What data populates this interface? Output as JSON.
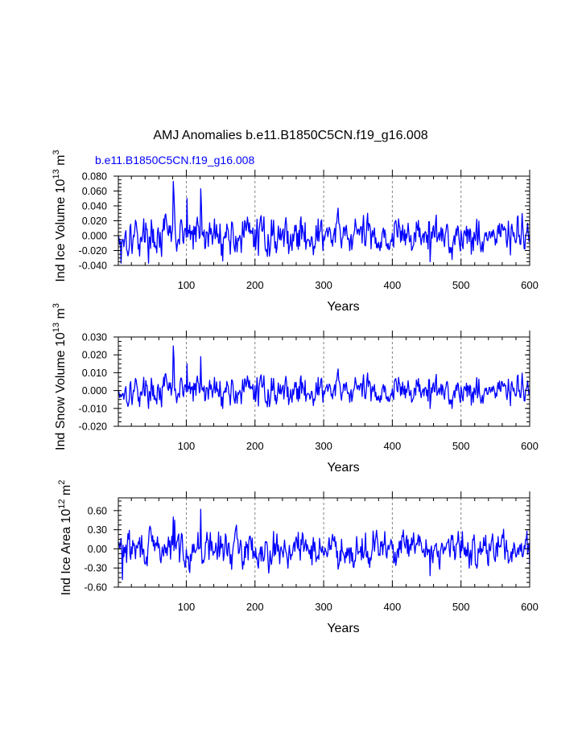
{
  "title": "AMJ Anomalies b.e11.B1850C5CN.f19_g16.008",
  "subtitle": "b.e11.B1850C5CN.f19_g16.008",
  "line_color": "#0000ff",
  "chart_data": [
    {
      "type": "line",
      "name": "ind-ice-volume",
      "ylabel_main": "Ind Ice Volume 10",
      "ylabel_exp": "13",
      "ylabel_unit": " m",
      "ylabel_unit_exp": "3",
      "xlabel": "Years",
      "xlim": [
        1,
        600
      ],
      "ylim": [
        -0.04,
        0.08
      ],
      "xticks": [
        100,
        200,
        300,
        400,
        500,
        600
      ],
      "yticks": [
        -0.04,
        -0.02,
        0.0,
        0.02,
        0.04,
        0.06,
        0.08
      ],
      "yticklabels": [
        "-0.040",
        "-0.020",
        "0.000",
        "0.020",
        "0.040",
        "0.060",
        "0.080"
      ],
      "yminor_step": 0.005,
      "grid_x": true,
      "seed": 17,
      "noise": 0.0165,
      "clip": [
        -0.037,
        0.073
      ],
      "features": [
        {
          "year": 81,
          "value": 0.073
        },
        {
          "year": 82,
          "value": 0.055
        },
        {
          "year": 83,
          "value": 0.03
        },
        {
          "year": 101,
          "value": 0.05
        },
        {
          "year": 121,
          "value": 0.063
        },
        {
          "year": 122,
          "value": 0.04
        },
        {
          "year": 5,
          "value": -0.037
        },
        {
          "year": 455,
          "value": -0.035
        }
      ]
    },
    {
      "type": "line",
      "name": "ind-snow-volume",
      "ylabel_main": "Ind Snow Volume 10",
      "ylabel_exp": "13",
      "ylabel_unit": " m",
      "ylabel_unit_exp": "3",
      "xlabel": "Years",
      "xlim": [
        1,
        600
      ],
      "ylim": [
        -0.02,
        0.03
      ],
      "xticks": [
        100,
        200,
        300,
        400,
        500,
        600
      ],
      "yticks": [
        -0.02,
        -0.01,
        0.0,
        0.01,
        0.02,
        0.03
      ],
      "yticklabels": [
        "-0.020",
        "-0.010",
        "0.000",
        "0.010",
        "0.020",
        "0.030"
      ],
      "yminor_step": 0.0025,
      "grid_x": true,
      "seed": 17,
      "noise": 0.0054,
      "clip": [
        -0.01,
        0.025
      ],
      "features": [
        {
          "year": 81,
          "value": 0.025
        },
        {
          "year": 82,
          "value": 0.018
        },
        {
          "year": 121,
          "value": 0.019
        },
        {
          "year": 101,
          "value": 0.015
        },
        {
          "year": 455,
          "value": -0.01
        }
      ]
    },
    {
      "type": "line",
      "name": "ind-ice-area",
      "ylabel_main": "Ind Ice Area 10",
      "ylabel_exp": "12",
      "ylabel_unit": " m",
      "ylabel_unit_exp": "2",
      "xlabel": "Years",
      "xlim": [
        1,
        600
      ],
      "ylim": [
        -0.6,
        0.8
      ],
      "xticks": [
        100,
        200,
        300,
        400,
        500,
        600
      ],
      "yticks": [
        -0.6,
        -0.3,
        0.0,
        0.3,
        0.6
      ],
      "yticklabels": [
        "-0.60",
        "-0.30",
        "0.00",
        "0.30",
        "0.60"
      ],
      "yminor_step": 0.075,
      "grid_x": true,
      "seed": 29,
      "noise": 0.17,
      "clip": [
        -0.5,
        0.62
      ],
      "features": [
        {
          "year": 121,
          "value": 0.62
        },
        {
          "year": 81,
          "value": 0.5
        },
        {
          "year": 83,
          "value": 0.45
        },
        {
          "year": 7,
          "value": -0.48
        },
        {
          "year": 455,
          "value": -0.42
        }
      ]
    }
  ]
}
